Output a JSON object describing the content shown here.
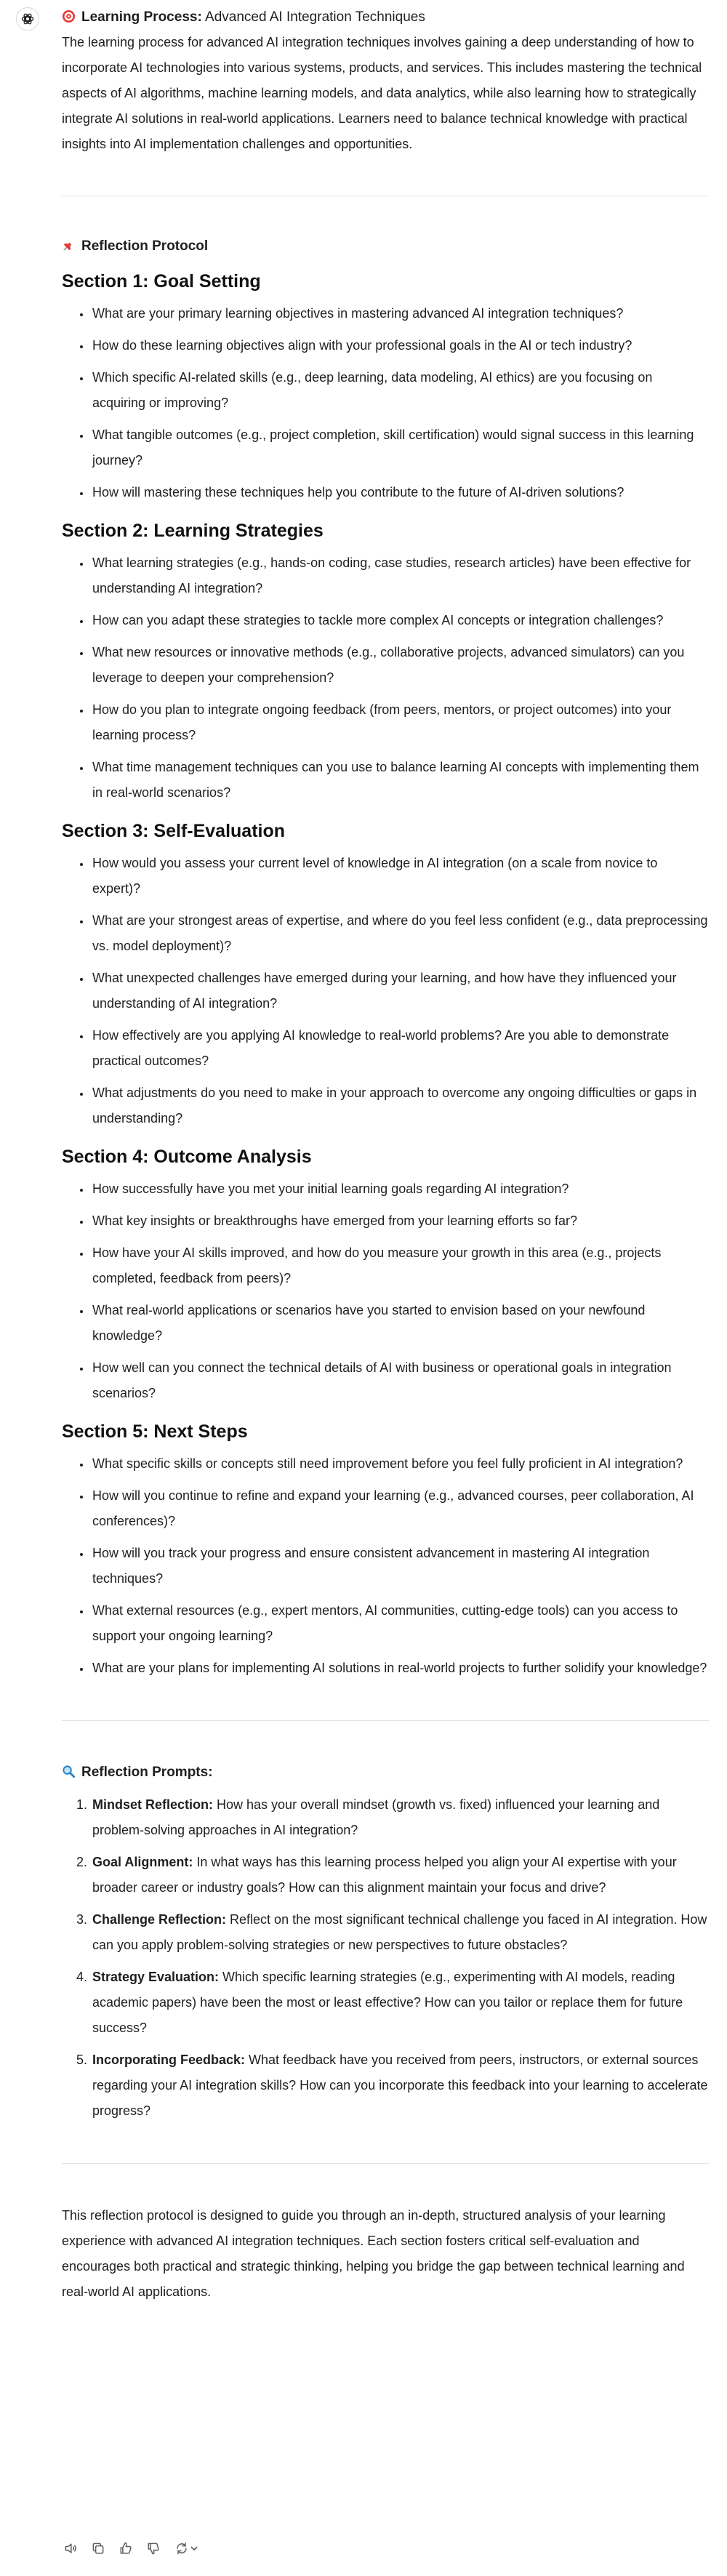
{
  "intro": {
    "title_label": "Learning Process:",
    "title_value": "Advanced AI Integration Techniques",
    "paragraph": "The learning process for advanced AI integration techniques involves gaining a deep understanding of how to incorporate AI technologies into various systems, products, and services. This includes mastering the technical aspects of AI algorithms, machine learning models, and data analytics, while also learning how to strategically integrate AI solutions in real-world applications. Learners need to balance technical knowledge with practical insights into AI implementation challenges and opportunities."
  },
  "protocol": {
    "heading": "Reflection Protocol",
    "sections": [
      {
        "title": "Section 1: Goal Setting",
        "items": [
          "What are your primary learning objectives in mastering advanced AI integration techniques?",
          "How do these learning objectives align with your professional goals in the AI or tech industry?",
          "Which specific AI-related skills (e.g., deep learning, data modeling, AI ethics) are you focusing on acquiring or improving?",
          "What tangible outcomes (e.g., project completion, skill certification) would signal success in this learning journey?",
          "How will mastering these techniques help you contribute to the future of AI-driven solutions?"
        ]
      },
      {
        "title": "Section 2: Learning Strategies",
        "items": [
          "What learning strategies (e.g., hands-on coding, case studies, research articles) have been effective for understanding AI integration?",
          "How can you adapt these strategies to tackle more complex AI concepts or integration challenges?",
          "What new resources or innovative methods (e.g., collaborative projects, advanced simulators) can you leverage to deepen your comprehension?",
          "How do you plan to integrate ongoing feedback (from peers, mentors, or project outcomes) into your learning process?",
          "What time management techniques can you use to balance learning AI concepts with implementing them in real-world scenarios?"
        ]
      },
      {
        "title": "Section 3: Self-Evaluation",
        "items": [
          "How would you assess your current level of knowledge in AI integration (on a scale from novice to expert)?",
          "What are your strongest areas of expertise, and where do you feel less confident (e.g., data preprocessing vs. model deployment)?",
          "What unexpected challenges have emerged during your learning, and how have they influenced your understanding of AI integration?",
          "How effectively are you applying AI knowledge to real-world problems? Are you able to demonstrate practical outcomes?",
          "What adjustments do you need to make in your approach to overcome any ongoing difficulties or gaps in understanding?"
        ]
      },
      {
        "title": "Section 4: Outcome Analysis",
        "items": [
          "How successfully have you met your initial learning goals regarding AI integration?",
          "What key insights or breakthroughs have emerged from your learning efforts so far?",
          "How have your AI skills improved, and how do you measure your growth in this area (e.g., projects completed, feedback from peers)?",
          "What real-world applications or scenarios have you started to envision based on your newfound knowledge?",
          "How well can you connect the technical details of AI with business or operational goals in integration scenarios?"
        ]
      },
      {
        "title": "Section 5: Next Steps",
        "items": [
          "What specific skills or concepts still need improvement before you feel fully proficient in AI integration?",
          "How will you continue to refine and expand your learning (e.g., advanced courses, peer collaboration, AI conferences)?",
          "How will you track your progress and ensure consistent advancement in mastering AI integration techniques?",
          "What external resources (e.g., expert mentors, AI communities, cutting-edge tools) can you access to support your ongoing learning?",
          "What are your plans for implementing AI solutions in real-world projects to further solidify your knowledge?"
        ]
      }
    ]
  },
  "prompts": {
    "heading": "Reflection Prompts:",
    "items": [
      {
        "label": "Mindset Reflection:",
        "text": " How has your overall mindset (growth vs. fixed) influenced your learning and problem-solving approaches in AI integration?"
      },
      {
        "label": "Goal Alignment:",
        "text": " In what ways has this learning process helped you align your AI expertise with your broader career or industry goals? How can this alignment maintain your focus and drive?"
      },
      {
        "label": "Challenge Reflection:",
        "text": " Reflect on the most significant technical challenge you faced in AI integration. How can you apply problem-solving strategies or new perspectives to future obstacles?"
      },
      {
        "label": "Strategy Evaluation:",
        "text": " Which specific learning strategies (e.g., experimenting with AI models, reading academic papers) have been the most or least effective? How can you tailor or replace them for future success?"
      },
      {
        "label": "Incorporating Feedback:",
        "text": " What feedback have you received from peers, instructors, or external sources regarding your AI integration skills? How can you incorporate this feedback into your learning to accelerate progress?"
      }
    ]
  },
  "closing": "This reflection protocol is designed to guide you through an in-depth, structured analysis of your learning experience with advanced AI integration techniques. Each section fosters critical self-evaluation and encourages both practical and strategic thinking, helping you bridge the gap between technical learning and real-world AI applications.",
  "icons": {
    "avatar": "assistant-logo-icon",
    "intro": "target-icon",
    "protocol": "pushpin-icon",
    "prompts": "magnifier-icon",
    "actions": [
      "speaker-icon",
      "copy-icon",
      "thumbs-up-icon",
      "thumbs-down-icon",
      "regenerate-icon",
      "chevron-down-icon"
    ]
  },
  "colors": {
    "text": "#1f1f1f",
    "divider": "#e3e3e3",
    "icon": "#5d5d5d"
  }
}
